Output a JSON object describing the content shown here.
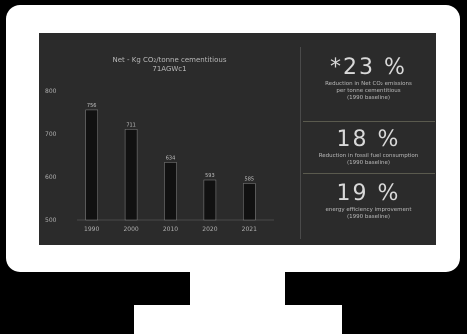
{
  "chart_data": {
    "type": "bar",
    "title_line1": "Net - Kg CO₂/tonne cementitious",
    "title_line2": "71AGWc1",
    "categories": [
      "1990",
      "2000",
      "2010",
      "2020",
      "2021"
    ],
    "values": [
      756,
      711,
      634,
      593,
      585
    ],
    "data_labels": [
      "756",
      "711",
      "634",
      "593",
      "585"
    ],
    "yticks": [
      "500",
      "600",
      "700",
      "800"
    ],
    "ylim": [
      500,
      800
    ],
    "grid": false,
    "bar_color": "#111111",
    "bar_stroke": "#8a8a8a"
  },
  "stats": [
    {
      "value": "*23 %",
      "desc_line1": "Reduction in Net CO₂ emissions",
      "desc_line2": "per tonne cementitious",
      "sub": "(1990 baseline)"
    },
    {
      "value": "18 %",
      "desc_line1": "Reduction in fossil fuel consumption",
      "desc_line2": "",
      "sub": "(1990 baseline)"
    },
    {
      "value": "19 %",
      "desc_line1": "energy efficiency improvement",
      "desc_line2": "",
      "sub": "(1990 baseline)"
    }
  ],
  "colors": {
    "screen_bg": "#2b2b2b",
    "bezel": "#ffffff",
    "text": "#c8c8c8"
  }
}
